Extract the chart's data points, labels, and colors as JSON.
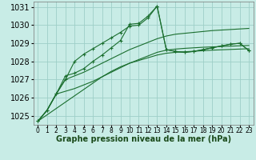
{
  "xlabel": "Graphe pression niveau de la mer (hPa)",
  "background_color": "#c8ece6",
  "grid_color": "#9dcfc8",
  "line_color": "#1a6e2e",
  "ylim": [
    1024.5,
    1031.3
  ],
  "xlim": [
    -0.5,
    23.5
  ],
  "yticks": [
    1025,
    1026,
    1027,
    1028,
    1029,
    1030,
    1031
  ],
  "xticks": [
    0,
    1,
    2,
    3,
    4,
    5,
    6,
    7,
    8,
    9,
    10,
    11,
    12,
    13,
    14,
    15,
    16,
    17,
    18,
    19,
    20,
    21,
    22,
    23
  ],
  "xtick_labels": [
    "0",
    "1",
    "2",
    "3",
    "4",
    "5",
    "6",
    "7",
    "8",
    "9",
    "10",
    "11",
    "12",
    "13",
    "14",
    "15",
    "16",
    "17",
    "18",
    "19",
    "20",
    "21",
    "22",
    "23"
  ],
  "series_with_markers": [
    [
      1024.7,
      1025.3,
      1026.2,
      1027.0,
      1028.0,
      1028.4,
      1028.7,
      1029.0,
      1029.3,
      1029.6,
      1029.95,
      1030.0,
      1030.4,
      1031.05,
      1028.65,
      1028.55,
      1028.5,
      1028.55,
      1028.65,
      1028.75,
      1028.85,
      1028.95,
      1029.0,
      1028.6
    ],
    [
      1024.7,
      1025.3,
      1026.2,
      1027.2,
      1027.35,
      1027.6,
      1028.0,
      1028.35,
      1028.75,
      1029.15,
      1030.05,
      1030.1,
      1030.5,
      1031.05,
      1028.65,
      1028.55,
      1028.5,
      1028.55,
      1028.65,
      1028.75,
      1028.85,
      1028.95,
      1029.0,
      1028.6
    ]
  ],
  "series_smooth": [
    [
      1024.7,
      1025.3,
      1026.2,
      1027.0,
      1027.2,
      1027.4,
      1027.65,
      1027.9,
      1028.15,
      1028.4,
      1028.65,
      1028.85,
      1029.05,
      1029.25,
      1029.4,
      1029.5,
      1029.55,
      1029.6,
      1029.65,
      1029.7,
      1029.73,
      1029.76,
      1029.79,
      1029.82
    ],
    [
      1024.7,
      1025.3,
      1026.2,
      1026.35,
      1026.5,
      1026.7,
      1026.9,
      1027.15,
      1027.4,
      1027.65,
      1027.9,
      1028.1,
      1028.3,
      1028.5,
      1028.62,
      1028.68,
      1028.72,
      1028.75,
      1028.78,
      1028.8,
      1028.82,
      1028.84,
      1028.86,
      1028.88
    ],
    [
      1024.7,
      1025.05,
      1025.4,
      1025.75,
      1026.1,
      1026.45,
      1026.8,
      1027.15,
      1027.45,
      1027.7,
      1027.9,
      1028.05,
      1028.2,
      1028.35,
      1028.45,
      1028.5,
      1028.53,
      1028.56,
      1028.59,
      1028.62,
      1028.64,
      1028.66,
      1028.68,
      1028.7
    ]
  ],
  "font_size_xlabel": 7,
  "font_size_yticks": 7,
  "font_size_xticks": 5.5
}
